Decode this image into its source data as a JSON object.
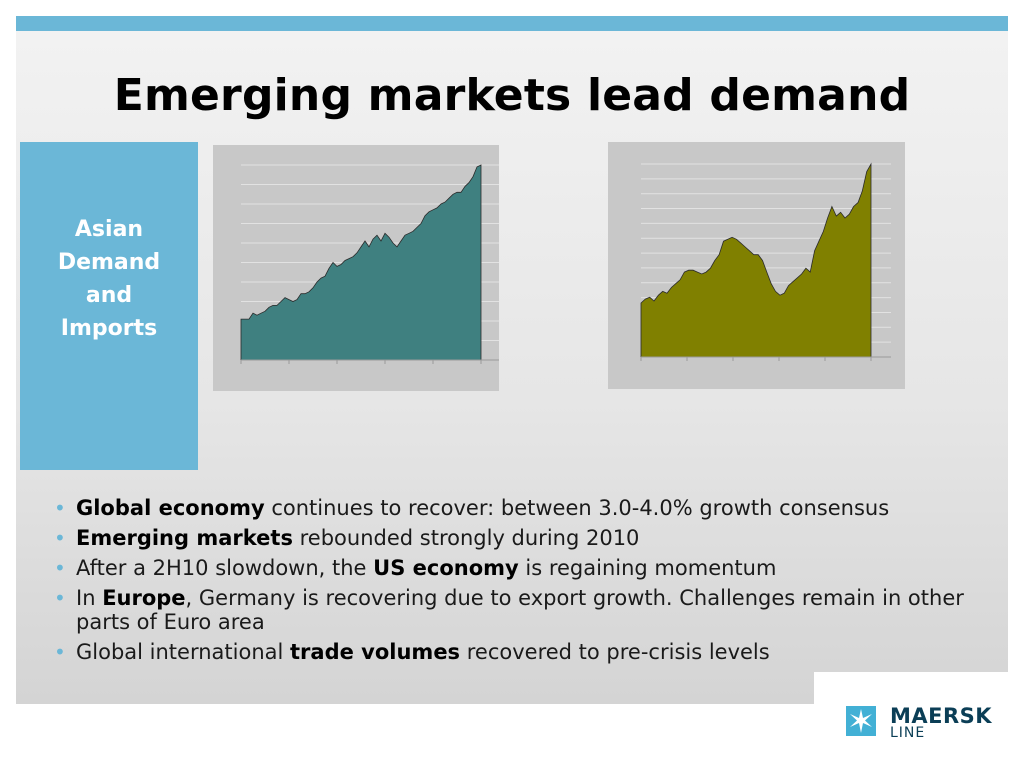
{
  "slide": {
    "title": "Emerging markets lead demand",
    "side_label": "Asian\nDemand\nand\nImports"
  },
  "bullets": [
    {
      "bold": "Global economy",
      "rest": " continues to recover: between 3.0-4.0% growth consensus"
    },
    {
      "bold": "Emerging markets",
      "rest": " rebounded strongly during 2010"
    },
    {
      "pre": "After a 2H10 slowdown, the ",
      "bold": "US economy",
      "rest": " is regaining momentum"
    },
    {
      "pre": "In ",
      "bold": "Europe",
      "rest": ", Germany is recovering due to export growth. Challenges remain in other parts of Euro area"
    },
    {
      "pre": "Global international ",
      "bold": "trade volumes",
      "rest": " recovered to pre-crisis levels"
    }
  ],
  "logo": {
    "word": "MAERSK",
    "sub": "LINE"
  },
  "colors": {
    "accent": "#6bb7d7",
    "chart1_fill": "#3f8080",
    "chart2_fill": "#808000",
    "chart_bg": "#c8c8c8"
  },
  "chart_data": [
    {
      "type": "area",
      "grid": true,
      "ylim": [
        0,
        100
      ],
      "x_ticks": 5,
      "y_gridlines": 10,
      "values": [
        21,
        21,
        21,
        24,
        23,
        24,
        25,
        27,
        28,
        28,
        30,
        32,
        31,
        30,
        31,
        34,
        34,
        35,
        37,
        40,
        42,
        43,
        47,
        50,
        48,
        49,
        51,
        52,
        53,
        55,
        58,
        61,
        58,
        62,
        64,
        61,
        65,
        63,
        60,
        58,
        61,
        64,
        65,
        66,
        68,
        70,
        74,
        76,
        77,
        78,
        80,
        81,
        83,
        85,
        86,
        86,
        89,
        91,
        94,
        99,
        100
      ]
    },
    {
      "type": "area",
      "grid": true,
      "ylim": [
        0,
        100
      ],
      "x_ticks": 5,
      "y_gridlines": 13,
      "values": [
        28,
        30,
        31,
        29,
        32,
        34,
        33,
        36,
        38,
        40,
        44,
        45,
        45,
        44,
        43,
        44,
        46,
        50,
        53,
        60,
        61,
        62,
        61,
        59,
        57,
        55,
        53,
        53,
        50,
        44,
        38,
        34,
        32,
        33,
        37,
        39,
        41,
        43,
        46,
        44,
        55,
        60,
        65,
        72,
        78,
        73,
        75,
        72,
        74,
        78,
        80,
        86,
        96,
        100
      ]
    }
  ]
}
